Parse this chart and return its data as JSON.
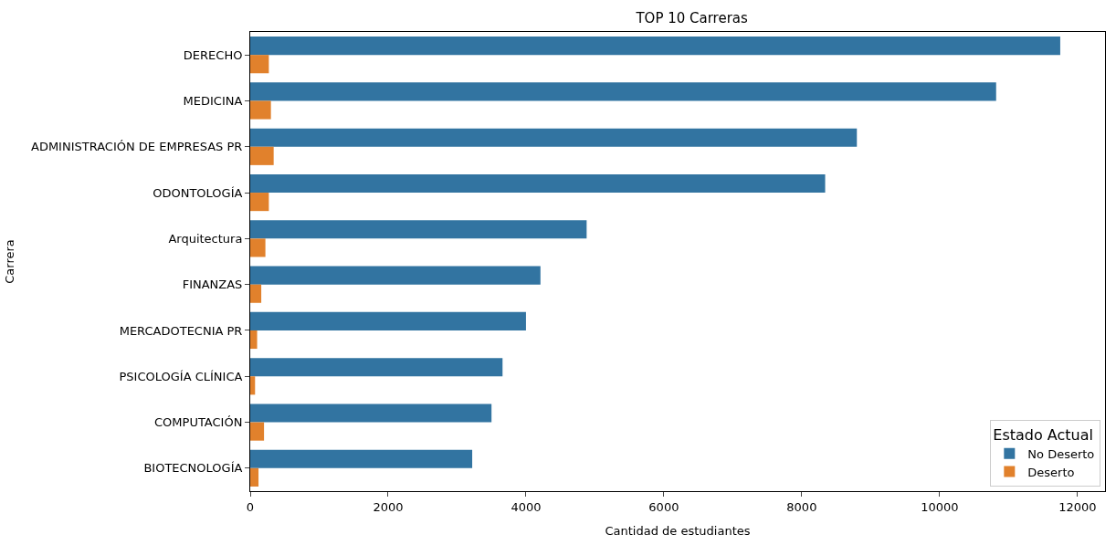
{
  "chart_data": {
    "type": "bar",
    "orientation": "horizontal",
    "title": "TOP 10 Carreras",
    "xlabel": "Cantidad de estudiantes",
    "ylabel": "Carrera",
    "legend_title": "Estado Actual",
    "legend": "bottom right",
    "categories": [
      "DERECHO",
      "MEDICINA",
      "ADMINISTRACIÓN DE EMPRESAS PR",
      "ODONTOLOGÍA",
      "Arquitectura",
      "FINANZAS",
      "MERCADOTECNIA PR",
      "PSICOLOGÍA CLÍNICA",
      "COMPUTACIÓN",
      "BIOTECNOLOGÍA"
    ],
    "series": [
      {
        "name": "No Deserto",
        "color": "#3274a1",
        "values": [
          11750,
          10820,
          8800,
          8340,
          4880,
          4210,
          4000,
          3660,
          3500,
          3220
        ]
      },
      {
        "name": "Deserto",
        "color": "#e1812c",
        "values": [
          270,
          300,
          340,
          270,
          220,
          160,
          100,
          70,
          200,
          120
        ]
      }
    ],
    "xlim": [
      0,
      12400
    ],
    "xticks": [
      0,
      2000,
      4000,
      6000,
      8000,
      10000,
      12000
    ]
  }
}
